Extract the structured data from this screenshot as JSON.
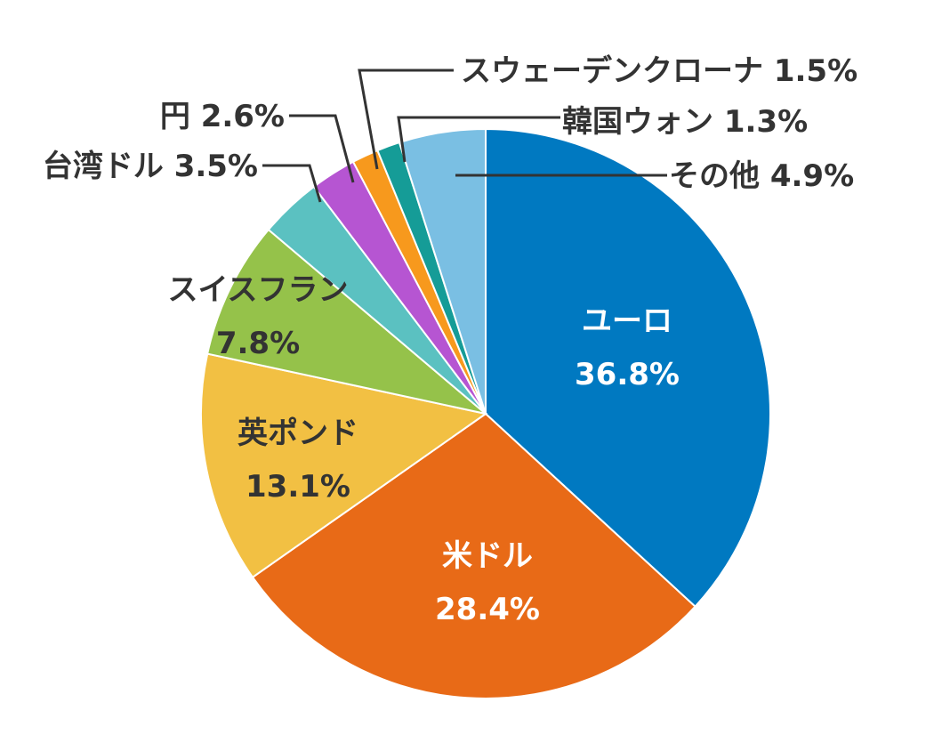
{
  "chart_data": {
    "type": "pie",
    "start": "12 o'clock",
    "direction": "clockwise",
    "slices": [
      {
        "key": "euro",
        "name": "ユーロ",
        "percent_label": "36.8%",
        "value": 36.8,
        "color": "#0079C1",
        "label_mode": "inside",
        "text_color": "#FFFFFF"
      },
      {
        "key": "usd",
        "name": "米ドル",
        "percent_label": "28.4%",
        "value": 28.4,
        "color": "#E86A17",
        "label_mode": "inside",
        "text_color": "#FFFFFF"
      },
      {
        "key": "gbp",
        "name": "英ポンド",
        "percent_label": "13.1%",
        "value": 13.1,
        "color": "#F2C043",
        "label_mode": "inside",
        "text_color": "#333333"
      },
      {
        "key": "chf",
        "name": "スイスフラン",
        "percent_label": "7.8%",
        "value": 7.8,
        "color": "#95C24A",
        "label_mode": "inside",
        "text_color": "#333333"
      },
      {
        "key": "twd",
        "name": "台湾ドル",
        "percent_label": "3.5%",
        "value": 3.5,
        "color": "#5BC1C1",
        "label_mode": "callout",
        "text_color": "#333333"
      },
      {
        "key": "jpy",
        "name": "円",
        "percent_label": "2.6%",
        "value": 2.6,
        "color": "#B655D2",
        "label_mode": "callout",
        "text_color": "#333333"
      },
      {
        "key": "sek",
        "name": "スウェーデンクローナ",
        "percent_label": "1.5%",
        "value": 1.5,
        "color": "#F7991D",
        "label_mode": "callout",
        "text_color": "#333333"
      },
      {
        "key": "krw",
        "name": "韓国ウォン",
        "percent_label": "1.3%",
        "value": 1.3,
        "color": "#159C97",
        "label_mode": "callout",
        "text_color": "#333333"
      },
      {
        "key": "other",
        "name": "その他",
        "percent_label": "4.9%",
        "value": 4.9,
        "color": "#7ABFE3",
        "label_mode": "callout",
        "text_color": "#333333"
      }
    ]
  }
}
